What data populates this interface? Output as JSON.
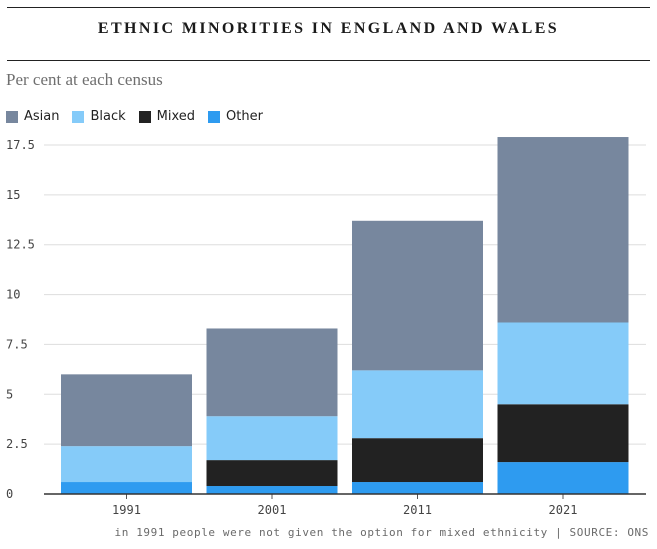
{
  "header": {
    "title": "ETHNIC MINORITIES IN ENGLAND AND WALES",
    "subtitle": "Per cent at each census"
  },
  "footnote": "in 1991 people were not given the option for mixed ethnicity | SOURCE: ONS",
  "chart_data": {
    "type": "bar",
    "stacked": true,
    "title": "ETHNIC MINORITIES IN ENGLAND AND WALES",
    "subtitle": "Per cent at each census",
    "xlabel": "",
    "ylabel": "",
    "categories": [
      "1991",
      "2001",
      "2011",
      "2021"
    ],
    "ylim": [
      0,
      17.5
    ],
    "yticks": [
      0,
      2.5,
      5,
      7.5,
      10,
      12.5,
      15,
      17.5
    ],
    "ytick_labels": [
      "0",
      "2.5",
      "5",
      "7.5",
      "10",
      "12.5",
      "15",
      "17.5"
    ],
    "grid": true,
    "legend_position": "top-left",
    "series": [
      {
        "name": "Other",
        "color": "#2e9bf0",
        "values": [
          0.6,
          0.4,
          0.6,
          1.6
        ]
      },
      {
        "name": "Mixed",
        "color": "#222222",
        "values": [
          0,
          1.3,
          2.2,
          2.9
        ]
      },
      {
        "name": "Black",
        "color": "#85cbf9",
        "values": [
          1.8,
          2.2,
          3.4,
          4.1
        ]
      },
      {
        "name": "Asian",
        "color": "#77879e",
        "values": [
          3.6,
          4.4,
          7.5,
          9.3
        ]
      }
    ],
    "legend": [
      {
        "name": "Asian",
        "color": "#77879e"
      },
      {
        "name": "Black",
        "color": "#85cbf9"
      },
      {
        "name": "Mixed",
        "color": "#222222"
      },
      {
        "name": "Other",
        "color": "#2e9bf0"
      }
    ]
  }
}
